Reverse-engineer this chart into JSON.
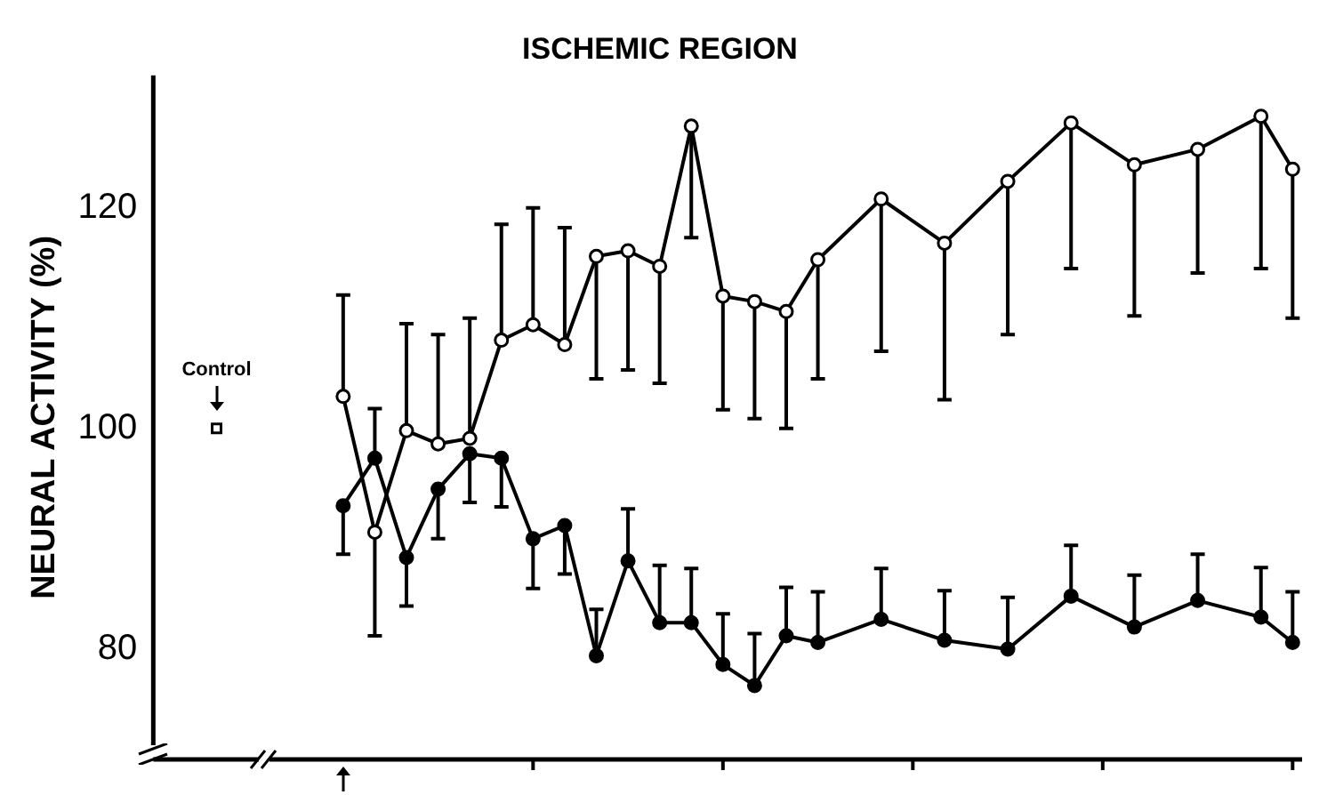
{
  "chart_data": {
    "type": "line",
    "title": "ISCHEMIC REGION",
    "ylabel": "NEURAL ACTIVITY (%)",
    "categories": [
      null,
      null,
      null,
      null,
      null,
      null,
      null,
      null,
      null,
      null,
      null,
      null,
      null,
      null,
      null,
      null,
      null,
      null,
      null,
      null,
      null,
      null,
      null,
      null,
      null,
      null,
      null,
      null,
      null,
      null,
      null,
      null,
      null,
      null,
      null
    ],
    "series": [
      {
        "color": "#000000",
        "marker": "circle",
        "values": [
          null,
          null,
          null,
          null,
          102.9,
          90.6,
          99.8,
          98.6,
          99.1,
          108.0,
          109.4,
          107.6,
          115.6,
          116.1,
          114.7,
          127.4,
          112.0,
          111.5,
          110.6,
          115.3,
          null,
          120.8,
          null,
          116.8,
          null,
          122.4,
          null,
          127.7,
          null,
          123.9,
          null,
          125.3,
          null,
          128.3,
          123.5
        ],
        "errors": [
          null,
          null,
          null,
          null,
          [
            102.9,
            112.1
          ],
          [
            81.2,
            90.6
          ],
          [
            99.8,
            109.5
          ],
          [
            98.6,
            108.5
          ],
          [
            99.1,
            110.0
          ],
          [
            108.0,
            118.5
          ],
          [
            109.4,
            120.0
          ],
          [
            107.6,
            118.2
          ],
          [
            104.5,
            115.6
          ],
          [
            105.3,
            116.1
          ],
          [
            104.1,
            114.7
          ],
          [
            117.3,
            127.4
          ],
          [
            101.7,
            112.0
          ],
          [
            100.9,
            111.5
          ],
          [
            100.0,
            110.6
          ],
          [
            104.5,
            115.3
          ],
          null,
          [
            107.0,
            120.8
          ],
          null,
          [
            102.6,
            116.8
          ],
          null,
          [
            108.5,
            122.4
          ],
          null,
          [
            114.5,
            127.7
          ],
          null,
          [
            110.2,
            123.9
          ],
          null,
          [
            114.1,
            125.3
          ],
          null,
          [
            114.5,
            128.3
          ],
          [
            110.0,
            123.5
          ]
        ]
      },
      {
        "color": "#000000",
        "marker": "circle",
        "values": [
          null,
          null,
          null,
          null,
          93.0,
          97.3,
          88.3,
          94.5,
          97.7,
          97.3,
          90.0,
          91.2,
          79.4,
          88.0,
          82.4,
          82.4,
          78.6,
          76.7,
          81.2,
          80.6,
          null,
          82.7,
          null,
          80.8,
          null,
          80.0,
          null,
          84.8,
          null,
          82.0,
          null,
          84.4,
          null,
          82.9,
          80.6
        ],
        "errors": [
          null,
          null,
          null,
          null,
          [
            88.6,
            93.0
          ],
          [
            97.3,
            101.8
          ],
          [
            83.9,
            88.3
          ],
          [
            90.0,
            94.5
          ],
          [
            93.3,
            97.7
          ],
          [
            92.9,
            97.3
          ],
          [
            85.5,
            90.0
          ],
          [
            86.8,
            91.2
          ],
          [
            79.4,
            83.6
          ],
          [
            88.0,
            92.7
          ],
          [
            82.4,
            87.6
          ],
          [
            82.4,
            87.3
          ],
          [
            78.6,
            83.2
          ],
          [
            76.7,
            81.4
          ],
          [
            81.2,
            85.6
          ],
          [
            80.6,
            85.2
          ],
          null,
          [
            82.7,
            87.3
          ],
          null,
          [
            80.8,
            85.3
          ],
          null,
          [
            80.0,
            84.7
          ],
          null,
          [
            84.8,
            89.4
          ],
          null,
          [
            82.0,
            86.7
          ],
          null,
          [
            84.4,
            88.6
          ],
          null,
          [
            82.9,
            87.4
          ],
          [
            80.6,
            85.2
          ]
        ]
      },
      {
        "type": "scatter",
        "color": "#000000",
        "marker": "square",
        "values": [
          100,
          null,
          null,
          null,
          null,
          null,
          null,
          null,
          null,
          null,
          null,
          null,
          null,
          null,
          null,
          null,
          null,
          null,
          null,
          null,
          null,
          null,
          null,
          null,
          null,
          null,
          null,
          null,
          null,
          null,
          null,
          null,
          null,
          null,
          null
        ]
      }
    ],
    "annotations": [
      "Control"
    ],
    "ylim": [
      70,
      132
    ],
    "yticks": [
      80,
      100,
      120
    ],
    "grid": false,
    "legend": false,
    "tick_labels": "y"
  }
}
